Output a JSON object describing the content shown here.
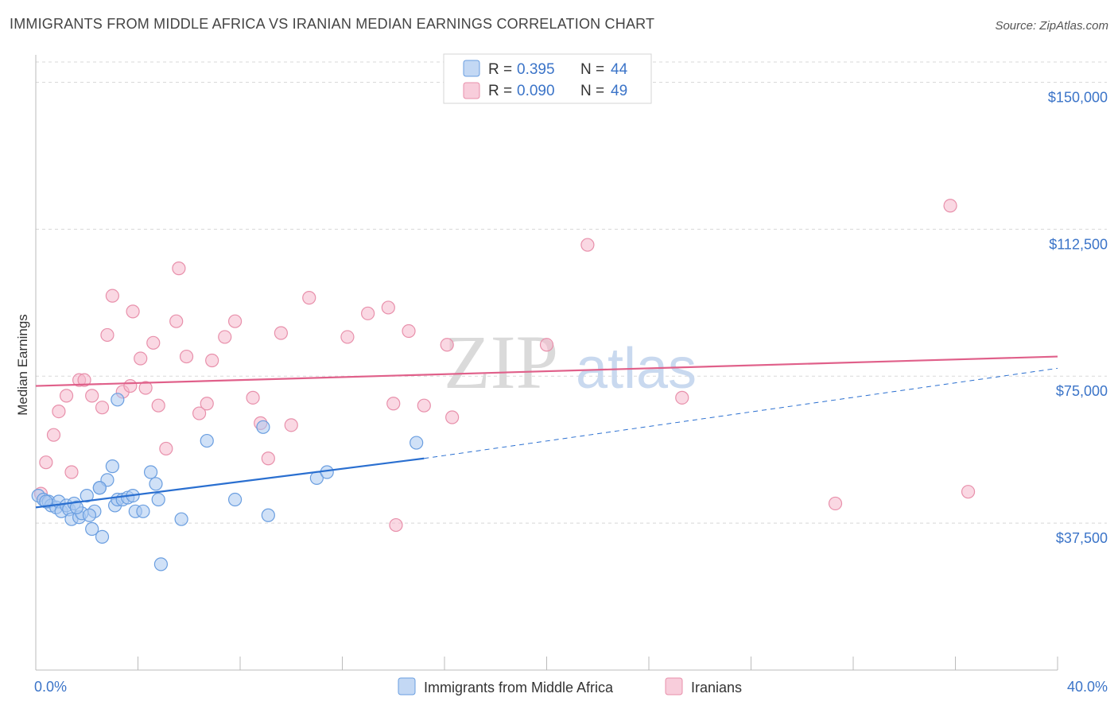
{
  "title": "IMMIGRANTS FROM MIDDLE AFRICA VS IRANIAN MEDIAN EARNINGS CORRELATION CHART",
  "source": "Source: ZipAtlas.com",
  "watermark": {
    "zip": "ZIP",
    "atlas": "atlas"
  },
  "colors": {
    "blue_fill": "#a9c8f0",
    "blue_stroke": "#6a9ee0",
    "blue_line": "#2a6fd0",
    "pink_fill": "#f5b8cc",
    "pink_stroke": "#e890ab",
    "pink_line": "#e0608a",
    "grid": "#d8d8d8",
    "tick_text": "#3b74c8"
  },
  "legend_top": {
    "rows": [
      {
        "r_label": "R =",
        "r_value": "0.395",
        "n_label": "N =",
        "n_value": "44"
      },
      {
        "r_label": "R =",
        "r_value": "0.090",
        "n_label": "N =",
        "n_value": "49"
      }
    ]
  },
  "chart_data": {
    "type": "scatter",
    "title": "IMMIGRANTS FROM MIDDLE AFRICA VS IRANIAN MEDIAN EARNINGS CORRELATION CHART",
    "xlabel": "",
    "ylabel": "Median Earnings",
    "xlim": [
      0,
      40
    ],
    "ylim": [
      0,
      158000
    ],
    "x_tick_labels": [
      "0.0%",
      "40.0%"
    ],
    "y_ticks": [
      {
        "value": 37500,
        "label": "$37,500"
      },
      {
        "value": 75000,
        "label": "$75,000"
      },
      {
        "value": 112500,
        "label": "$112,500"
      },
      {
        "value": 150000,
        "label": "$150,000"
      }
    ],
    "grid": "horizontal dashed",
    "legend": "bottom-center",
    "series": [
      {
        "name": "Immigrants from Middle Africa",
        "color": "blue",
        "r": 0.395,
        "n": 44,
        "trend_solid": {
          "x": [
            0,
            15.2
          ],
          "y": [
            41500,
            54000
          ]
        },
        "trend_dashed": {
          "x": [
            15.2,
            40
          ],
          "y": [
            54000,
            77000
          ]
        },
        "points": [
          [
            0.1,
            44500
          ],
          [
            0.3,
            43500
          ],
          [
            0.5,
            43000
          ],
          [
            0.6,
            42000
          ],
          [
            0.8,
            41500
          ],
          [
            0.9,
            43000
          ],
          [
            1.0,
            40500
          ],
          [
            1.2,
            42000
          ],
          [
            1.3,
            41000
          ],
          [
            1.4,
            38500
          ],
          [
            1.5,
            42500
          ],
          [
            1.7,
            39000
          ],
          [
            1.8,
            40000
          ],
          [
            2.0,
            44500
          ],
          [
            2.2,
            36000
          ],
          [
            2.3,
            40500
          ],
          [
            2.5,
            46500
          ],
          [
            2.6,
            34000
          ],
          [
            2.8,
            48500
          ],
          [
            3.0,
            52000
          ],
          [
            3.1,
            42000
          ],
          [
            3.2,
            43500
          ],
          [
            3.4,
            43500
          ],
          [
            3.6,
            44000
          ],
          [
            3.8,
            44500
          ],
          [
            3.9,
            40500
          ],
          [
            4.2,
            40500
          ],
          [
            4.5,
            50500
          ],
          [
            4.7,
            47500
          ],
          [
            4.8,
            43500
          ],
          [
            3.2,
            69000
          ],
          [
            2.5,
            46500
          ],
          [
            5.7,
            38500
          ],
          [
            4.9,
            27000
          ],
          [
            6.7,
            58500
          ],
          [
            7.8,
            43500
          ],
          [
            8.9,
            62000
          ],
          [
            9.1,
            39500
          ],
          [
            11.0,
            49000
          ],
          [
            11.4,
            50500
          ],
          [
            14.9,
            58000
          ],
          [
            0.4,
            43000
          ],
          [
            1.6,
            41500
          ],
          [
            2.1,
            39500
          ]
        ]
      },
      {
        "name": "Iranians",
        "color": "pink",
        "r": 0.09,
        "n": 49,
        "trend_solid": {
          "x": [
            0,
            40
          ],
          "y": [
            72500,
            80000
          ]
        },
        "points": [
          [
            0.2,
            45000
          ],
          [
            0.4,
            53000
          ],
          [
            0.7,
            60000
          ],
          [
            0.9,
            66000
          ],
          [
            1.2,
            70000
          ],
          [
            1.4,
            50500
          ],
          [
            1.7,
            74000
          ],
          [
            1.9,
            74000
          ],
          [
            2.2,
            70000
          ],
          [
            2.6,
            67000
          ],
          [
            2.8,
            85500
          ],
          [
            3.0,
            95500
          ],
          [
            3.4,
            71000
          ],
          [
            3.7,
            72500
          ],
          [
            3.8,
            91500
          ],
          [
            4.1,
            79500
          ],
          [
            4.3,
            72000
          ],
          [
            4.6,
            83500
          ],
          [
            4.8,
            67500
          ],
          [
            5.1,
            56500
          ],
          [
            5.5,
            89000
          ],
          [
            5.6,
            102500
          ],
          [
            5.9,
            80000
          ],
          [
            6.4,
            65500
          ],
          [
            6.7,
            68000
          ],
          [
            6.9,
            79000
          ],
          [
            7.4,
            85000
          ],
          [
            7.8,
            89000
          ],
          [
            8.5,
            69500
          ],
          [
            8.8,
            63000
          ],
          [
            9.1,
            54000
          ],
          [
            9.6,
            86000
          ],
          [
            10.0,
            62500
          ],
          [
            10.7,
            95000
          ],
          [
            12.2,
            85000
          ],
          [
            13.0,
            91000
          ],
          [
            13.8,
            92500
          ],
          [
            14.0,
            68000
          ],
          [
            14.1,
            37000
          ],
          [
            14.6,
            86500
          ],
          [
            15.2,
            67500
          ],
          [
            16.1,
            83000
          ],
          [
            16.3,
            64500
          ],
          [
            20.0,
            83000
          ],
          [
            21.6,
            108500
          ],
          [
            25.3,
            69500
          ],
          [
            31.3,
            42500
          ],
          [
            35.8,
            118500
          ],
          [
            36.5,
            45500
          ]
        ]
      }
    ]
  }
}
